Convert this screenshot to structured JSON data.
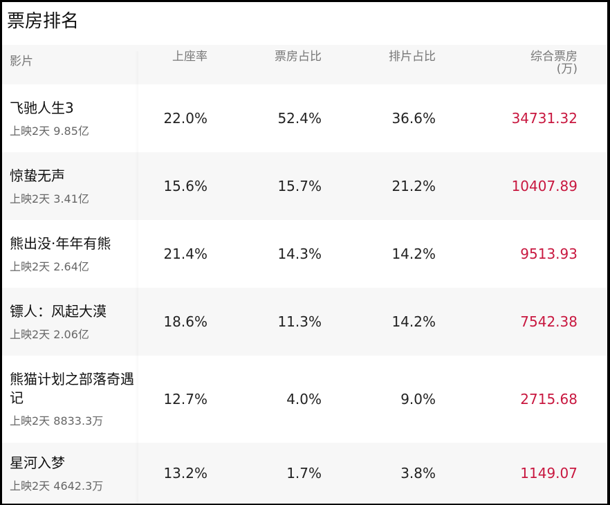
{
  "title": "票房排名",
  "headers": {
    "film": "影片",
    "occupancy": "上座率",
    "box_share": "票房占比",
    "screen_share": "排片占比",
    "total": "综合票房",
    "total_unit": "(万)"
  },
  "accent_color": "#c8173f",
  "rows": [
    {
      "name": "飞驰人生3",
      "sub": "上映2天 9.85亿",
      "occupancy": "22.0%",
      "box_share": "52.4%",
      "screen_share": "36.6%",
      "total": "34731.32"
    },
    {
      "name": "惊蛰无声",
      "sub": "上映2天 3.41亿",
      "occupancy": "15.6%",
      "box_share": "15.7%",
      "screen_share": "21.2%",
      "total": "10407.89"
    },
    {
      "name": "熊出没·年年有熊",
      "sub": "上映2天 2.64亿",
      "occupancy": "21.4%",
      "box_share": "14.3%",
      "screen_share": "14.2%",
      "total": "9513.93"
    },
    {
      "name": "镖人：风起大漠",
      "sub": "上映2天 2.06亿",
      "occupancy": "18.6%",
      "box_share": "11.3%",
      "screen_share": "14.2%",
      "total": "7542.38"
    },
    {
      "name": "熊猫计划之部落奇遇记",
      "sub": "上映2天 8833.3万",
      "occupancy": "12.7%",
      "box_share": "4.0%",
      "screen_share": "9.0%",
      "total": "2715.68"
    },
    {
      "name": "星河入梦",
      "sub": "上映2天 4642.3万",
      "occupancy": "13.2%",
      "box_share": "1.7%",
      "screen_share": "3.8%",
      "total": "1149.07"
    }
  ]
}
